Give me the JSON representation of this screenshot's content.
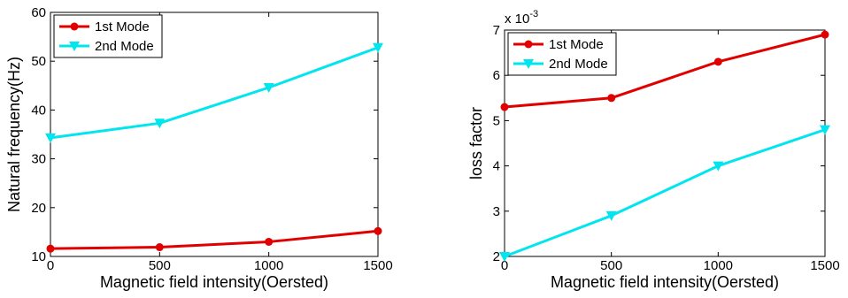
{
  "chart_data": [
    {
      "type": "line",
      "title": "",
      "xlabel": "Magnetic field intensity(Oersted)",
      "ylabel": "Natural frequency(Hz)",
      "x": [
        0,
        500,
        1000,
        1500
      ],
      "xlim": [
        0,
        1500
      ],
      "ylim": [
        10,
        60
      ],
      "xticks": [
        "0",
        "500",
        "1000",
        "1500"
      ],
      "yticks": [
        "10",
        "20",
        "30",
        "40",
        "50",
        "60"
      ],
      "grid": false,
      "legend_position": "top-left",
      "series": [
        {
          "name": "1st Mode",
          "values": [
            11.6,
            11.9,
            13.0,
            15.2
          ],
          "color": "#e00000",
          "marker": "circle"
        },
        {
          "name": "2nd Mode",
          "values": [
            34.3,
            37.3,
            44.6,
            52.8
          ],
          "color": "#00e5ee",
          "marker": "triangle-down"
        }
      ]
    },
    {
      "type": "line",
      "title": "",
      "xlabel": "Magnetic field intensity(Oersted)",
      "ylabel": "loss factor",
      "y_multiplier": "x 10",
      "y_multiplier_exponent": "-3",
      "x": [
        0,
        500,
        1000,
        1500
      ],
      "xlim": [
        0,
        1500
      ],
      "ylim": [
        2,
        7
      ],
      "xticks": [
        "0",
        "500",
        "1000",
        "1500"
      ],
      "yticks": [
        "2",
        "3",
        "4",
        "5",
        "6",
        "7"
      ],
      "grid": false,
      "legend_position": "top-left",
      "series": [
        {
          "name": "1st Mode",
          "values": [
            5.3,
            5.5,
            6.3,
            6.9
          ],
          "color": "#e00000",
          "marker": "circle"
        },
        {
          "name": "2nd Mode",
          "values": [
            2.0,
            2.9,
            4.0,
            4.8
          ],
          "color": "#00e5ee",
          "marker": "triangle-down"
        }
      ]
    }
  ]
}
